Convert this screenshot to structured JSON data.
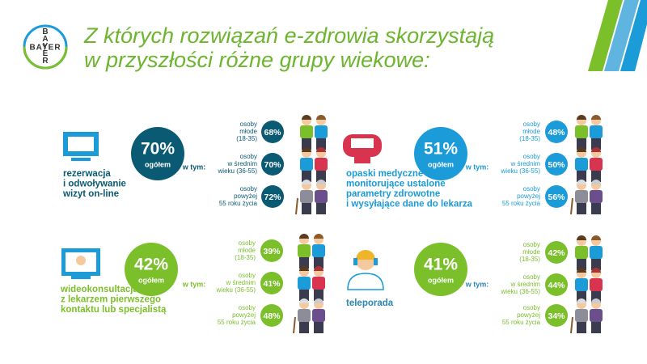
{
  "logo": {
    "text": "BAYER"
  },
  "header": {
    "title_lines": [
      "Z których rozwiązań e-zdrowia skorzystają",
      "w przyszłości różne grupy wiekowe:"
    ]
  },
  "panels": [
    {
      "color": "#0b5a74",
      "label_color": "#0b5a74",
      "label_lines": [
        "rezerwacja",
        "i odwoływanie",
        "wizyt on-line"
      ],
      "total": "70%",
      "total_caption": "ogółem",
      "subtitle": "w tym:",
      "groups": [
        {
          "label_lines": [
            "osoby",
            "młode",
            "(18-35)"
          ],
          "value": "68%"
        },
        {
          "label_lines": [
            "osoby",
            "w średnim",
            "wieku (36-55)"
          ],
          "value": "70%"
        },
        {
          "label_lines": [
            "osoby",
            "powyżej",
            "55 roku życia"
          ],
          "value": "72%"
        }
      ]
    },
    {
      "color": "#1b9bd7",
      "label_color": "#1b9bd7",
      "label_lines": [
        "opaski medyczne",
        "monitorujące ustalone",
        "parametry zdrowotne",
        "i wysyłające dane do lekarza"
      ],
      "total": "51%",
      "total_caption": "ogółem",
      "subtitle": "w tym:",
      "groups": [
        {
          "label_lines": [
            "osoby",
            "młode",
            "(18-35)"
          ],
          "value": "48%"
        },
        {
          "label_lines": [
            "osoby",
            "w średnim",
            "wieku (36-55)"
          ],
          "value": "50%"
        },
        {
          "label_lines": [
            "osoby",
            "powyżej",
            "55 roku życia"
          ],
          "value": "56%"
        }
      ]
    },
    {
      "color": "#7bbf2a",
      "label_color": "#7bbf2a",
      "label_lines": [
        "wideokonsultacja",
        "z lekarzem pierwszego",
        "kontaktu lub specjalistą"
      ],
      "total": "42%",
      "total_caption": "ogółem",
      "subtitle": "w tym:",
      "groups": [
        {
          "label_lines": [
            "osoby",
            "młode",
            "(18-35)"
          ],
          "value": "39%"
        },
        {
          "label_lines": [
            "osoby",
            "w średnim",
            "wieku (36-55)"
          ],
          "value": "41%"
        },
        {
          "label_lines": [
            "osoby",
            "powyżej",
            "55 roku życia"
          ],
          "value": "48%"
        }
      ]
    },
    {
      "color": "#7bbf2a",
      "label_color": "#2a86b5",
      "label_lines": [
        "teleporada"
      ],
      "total": "41%",
      "total_caption": "ogółem",
      "subtitle": "w tym:",
      "groups": [
        {
          "label_lines": [
            "osoby",
            "młode",
            "(18-35)"
          ],
          "value": "42%"
        },
        {
          "label_lines": [
            "osoby",
            "w średnim",
            "wieku (36-55)"
          ],
          "value": "44%"
        },
        {
          "label_lines": [
            "osoby",
            "powyżej",
            "55 roku życia"
          ],
          "value": "34%"
        }
      ]
    }
  ]
}
